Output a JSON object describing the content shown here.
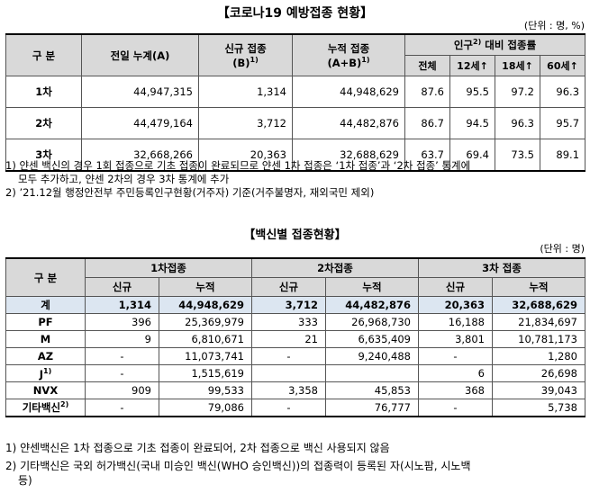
{
  "title1": "【코로나19 예방접종 현황】",
  "unit1": "(단위 : 명, %)",
  "table1": {
    "h_group": "구 분",
    "h_prev": "전일 누계(A)",
    "h_new": "신규 접종",
    "h_new2": "(B)",
    "h_new_sup": "1)",
    "h_cum": "누적 접종",
    "h_cum2": "(A+B)",
    "h_cum_sup": "1)",
    "h_rate": "인구",
    "h_rate_sup": "2)",
    "h_rate2": "대비 접종률",
    "h_sub": [
      "전체",
      "12세↑",
      "18세↑",
      "60세↑"
    ],
    "rows": [
      {
        "label": "1차",
        "prev": "44,947,315",
        "new": "1,314",
        "cum": "44,948,629",
        "r": [
          "87.6",
          "95.5",
          "97.2",
          "96.3"
        ]
      },
      {
        "label": "2차",
        "prev": "44,479,164",
        "new": "3,712",
        "cum": "44,482,876",
        "r": [
          "86.7",
          "94.5",
          "96.3",
          "95.7"
        ]
      },
      {
        "label": "3차",
        "prev": "32,668,266",
        "new": "20,363",
        "cum": "32,688,629",
        "r": [
          "63.7",
          "69.4",
          "73.5",
          "89.1"
        ]
      }
    ]
  },
  "notes1": [
    "1) 얀센 백신의 경우 1회 접종으로 기초 접종이 완료되므로 얀센 1차 접종은 ‘1차 접종’과 ‘2차 접종’ 통계에",
    "모두 추가하고, 얀센 2차의 경우 3차 통계에 추가",
    "2) ’21.12월 행정안전부 주민등록인구현황(거주자) 기준(거주불명자, 재외국민 제외)"
  ],
  "title2": "【백신별 접종현황】",
  "unit2": "(단위 : 명)",
  "table2": {
    "h_group": "구 분",
    "h_d1": "1차접종",
    "h_d2": "2차접종",
    "h_d3": "3차 접종",
    "h_new": "신규",
    "h_cum": "누적",
    "rows": [
      {
        "label": "계",
        "v": [
          "1,314",
          "44,948,629",
          "3,712",
          "44,482,876",
          "20,363",
          "32,688,629"
        ]
      },
      {
        "label": "PF",
        "v": [
          "396",
          "25,369,979",
          "333",
          "26,968,730",
          "16,188",
          "21,834,697"
        ]
      },
      {
        "label": "M",
        "v": [
          "9",
          "6,810,671",
          "21",
          "6,635,409",
          "3,801",
          "10,781,173"
        ]
      },
      {
        "label": "AZ",
        "v": [
          "-",
          "11,073,741",
          "-",
          "9,240,488",
          "-",
          "1,280"
        ]
      },
      {
        "label": "J",
        "sup": "1)",
        "v": [
          "-",
          "1,515,619",
          "",
          "",
          "6",
          "26,698"
        ]
      },
      {
        "label": "NVX",
        "v": [
          "909",
          "99,533",
          "3,358",
          "45,853",
          "368",
          "39,043"
        ]
      },
      {
        "label": "기타백신",
        "sup": "2)",
        "v": [
          "-",
          "79,086",
          "-",
          "76,777",
          "-",
          "5,738"
        ]
      }
    ]
  },
  "notes2": [
    "1) 얀센백신은 1차 접종으로 기초 접종이 완료되어, 2차 접종으로 백신 사용되지 않음",
    "2) 기타백신은 국외 허가백신(국내 미승인 백신(WHO 승인백신))의 접종력이 등록된 자(시노팜, 시노백",
    "등)"
  ]
}
